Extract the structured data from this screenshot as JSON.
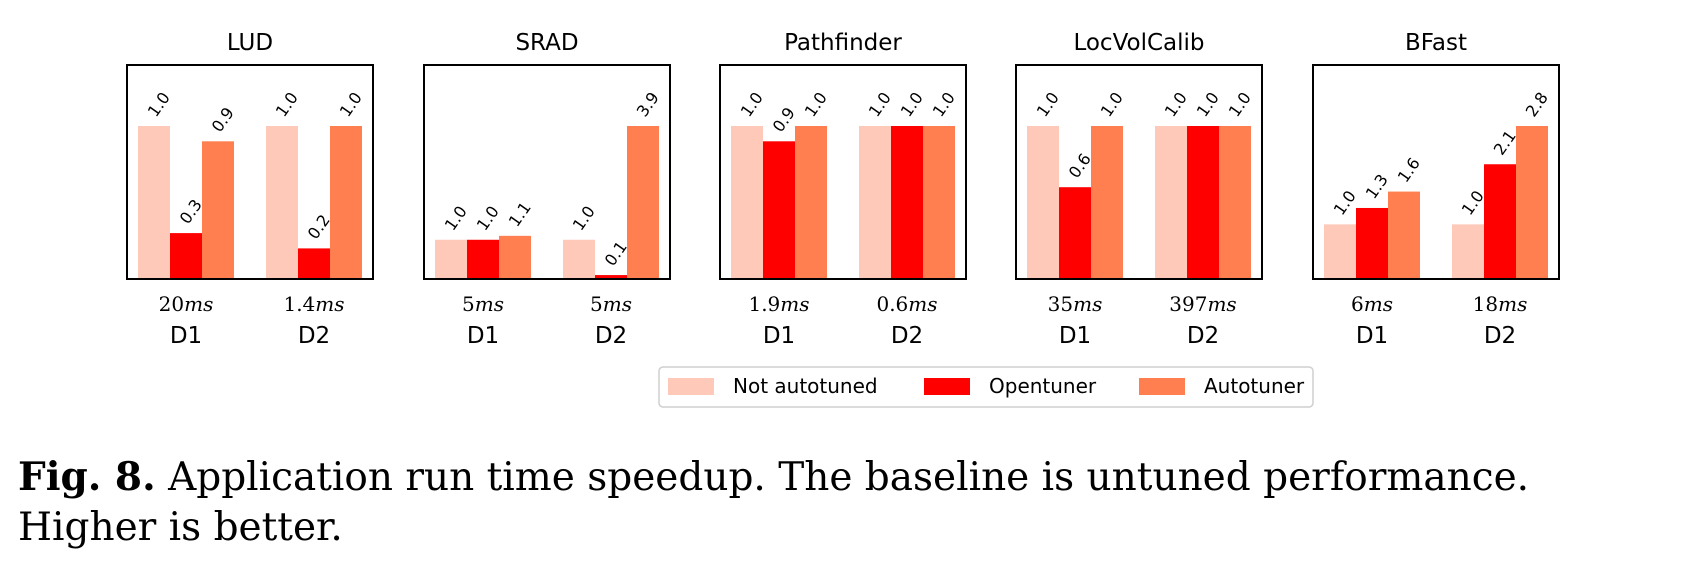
{
  "chart_data": {
    "type": "bar",
    "layout": "small-multiples",
    "series": [
      {
        "name": "Not autotuned",
        "color": "#fec9b8"
      },
      {
        "name": "Opentuner",
        "color": "#ff0000"
      },
      {
        "name": "Autotuner",
        "color": "#ff7f50"
      }
    ],
    "panels": [
      {
        "title": "LUD",
        "groups": [
          {
            "dataset": "D1",
            "baseline_time": "20",
            "unit": "ms",
            "values": [
              1.0,
              0.3,
              0.9
            ],
            "labels": [
              "1.0",
              "0.3",
              "0.9"
            ]
          },
          {
            "dataset": "D2",
            "baseline_time": "1.4",
            "unit": "ms",
            "values": [
              1.0,
              0.2,
              1.0
            ],
            "labels": [
              "1.0",
              "0.2",
              "1.0"
            ]
          }
        ]
      },
      {
        "title": "SRAD",
        "groups": [
          {
            "dataset": "D1",
            "baseline_time": "5",
            "unit": "ms",
            "values": [
              1.0,
              1.0,
              1.1
            ],
            "labels": [
              "1.0",
              "1.0",
              "1.1"
            ]
          },
          {
            "dataset": "D2",
            "baseline_time": "5",
            "unit": "ms",
            "values": [
              1.0,
              0.1,
              3.9
            ],
            "labels": [
              "1.0",
              "0.1",
              "3.9"
            ]
          }
        ]
      },
      {
        "title": "Pathfinder",
        "groups": [
          {
            "dataset": "D1",
            "baseline_time": "1.9",
            "unit": "ms",
            "values": [
              1.0,
              0.9,
              1.0
            ],
            "labels": [
              "1.0",
              "0.9",
              "1.0"
            ]
          },
          {
            "dataset": "D2",
            "baseline_time": "0.6",
            "unit": "ms",
            "values": [
              1.0,
              1.0,
              1.0
            ],
            "labels": [
              "1.0",
              "1.0",
              "1.0"
            ]
          }
        ]
      },
      {
        "title": "LocVolCalib",
        "groups": [
          {
            "dataset": "D1",
            "baseline_time": "35",
            "unit": "ms",
            "values": [
              1.0,
              0.6,
              1.0
            ],
            "labels": [
              "1.0",
              "0.6",
              "1.0"
            ]
          },
          {
            "dataset": "D2",
            "baseline_time": "397",
            "unit": "ms",
            "values": [
              1.0,
              1.0,
              1.0
            ],
            "labels": [
              "1.0",
              "1.0",
              "1.0"
            ]
          }
        ]
      },
      {
        "title": "BFast",
        "groups": [
          {
            "dataset": "D1",
            "baseline_time": "6",
            "unit": "ms",
            "values": [
              1.0,
              1.3,
              1.6
            ],
            "labels": [
              "1.0",
              "1.3",
              "1.6"
            ]
          },
          {
            "dataset": "D2",
            "baseline_time": "18",
            "unit": "ms",
            "values": [
              1.0,
              2.1,
              2.8
            ],
            "labels": [
              "1.0",
              "2.1",
              "2.8"
            ]
          }
        ]
      }
    ],
    "legend": [
      "Not autotuned",
      "Opentuner",
      "Autotuner"
    ],
    "legend_position": "bottom-center",
    "ylabel": "",
    "grid": false
  },
  "caption": {
    "label": "Fig. 8.",
    "text": "Application run time speedup. The baseline is untuned performance. Higher is better."
  }
}
